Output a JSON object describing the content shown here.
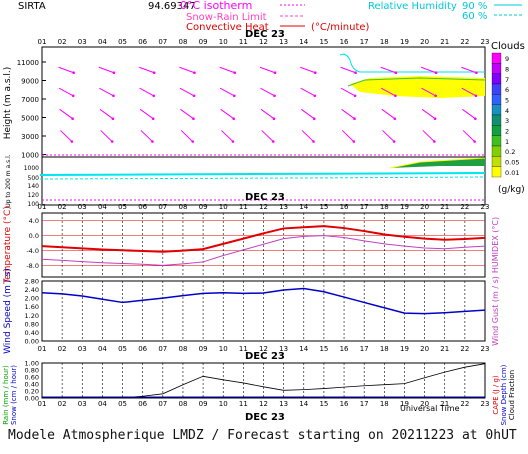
{
  "header": {
    "station": "SIRTA",
    "coords": "94.69347",
    "legend_iso": "0°C isotherm",
    "legend_snow": "Snow-Rain Limit",
    "legend_conv": "Convective Heat",
    "legend_conv_unit": "(°C/minute)",
    "legend_rh": "Relative Humidity",
    "rh_90": "90 %",
    "rh_60": "60 %"
  },
  "colors": {
    "wind_arrow": "#ff00ff",
    "rh": "#00e5ee",
    "temperature": "#e00000",
    "humidex": "#c040c0",
    "wind_speed": "#0000c8",
    "precip": "#000000",
    "iso": "#ff00ff"
  },
  "date_label": "DEC 23",
  "hours": [
    "01",
    "02",
    "03",
    "04",
    "05",
    "06",
    "07",
    "08",
    "09",
    "10",
    "11",
    "12",
    "13",
    "14",
    "15",
    "16",
    "17",
    "18",
    "19",
    "20",
    "21",
    "22",
    "23"
  ],
  "panels": {
    "height": {
      "ylabel": "Height (m a.s.l.)",
      "ticks": [
        "11000",
        "9000",
        "7000",
        "5000",
        "3000",
        "1000"
      ],
      "low_label": "Up to 200 m a.s.l.",
      "low_ticks": [
        "1000",
        "500",
        "140",
        "120",
        "100"
      ]
    },
    "clouds": {
      "title": "Clouds",
      "levels": [
        "9",
        "8",
        "7",
        "6",
        "5",
        "4",
        "3",
        "2",
        "1",
        "0.2",
        "0.05",
        "0.01"
      ],
      "unit": "(g/kg)",
      "colors": [
        "#ff00ff",
        "#c000ff",
        "#8000ff",
        "#4040ff",
        "#3060ff",
        "#1890c0",
        "#109070",
        "#10a040",
        "#40c020",
        "#80d000",
        "#c0e000",
        "#ffff00"
      ]
    },
    "temperature": {
      "ylabel": "Temperature (°C)",
      "ylabel_right": "HUMIDEX (°C)",
      "ticks": [
        "4.0",
        "0.0",
        "-4.0",
        "-8.0"
      ]
    },
    "wind": {
      "ylabel": "Wind Speed (m / s)",
      "ylabel_right": "Wind Gust (m / s)",
      "ticks": [
        "2.80",
        "2.40",
        "2.00",
        "1.60",
        "1.20",
        "0.80",
        "0.40",
        "0.00"
      ]
    },
    "precip": {
      "ylabel": "Rain (mm / hour)",
      "ylabel2": "Snow (cm / hour)",
      "ylabel_right": "CAPE (J / g)",
      "ylabel_right2": "Snow Depth (cm)",
      "ylabel_right3": "Cloud Fraction",
      "ticks": [
        "1.00",
        "0.80",
        "0.60",
        "0.40",
        "0.20",
        "0.00"
      ],
      "xlabel": "Universal Time"
    }
  },
  "chart_data": [
    {
      "type": "line",
      "name": "temperature-panel",
      "x": [
        1,
        2,
        3,
        4,
        5,
        6,
        7,
        8,
        9,
        10,
        11,
        12,
        13,
        14,
        15,
        16,
        17,
        18,
        19,
        20,
        21,
        22,
        23
      ],
      "ylim": [
        -11,
        6
      ],
      "series": [
        {
          "name": "Temperature",
          "values": [
            -2.8,
            -3.1,
            -3.4,
            -3.7,
            -3.9,
            -4.1,
            -4.3,
            -4.0,
            -3.6,
            -2.2,
            -0.8,
            0.6,
            1.9,
            2.2,
            2.5,
            2.0,
            1.2,
            0.3,
            -0.3,
            -0.8,
            -1.1,
            -0.9,
            -0.6
          ]
        },
        {
          "name": "Humidex",
          "values": [
            -6.3,
            -6.6,
            -6.9,
            -7.2,
            -7.4,
            -7.6,
            -7.9,
            -7.5,
            -7.0,
            -5.3,
            -3.8,
            -2.3,
            -0.8,
            -0.2,
            0.0,
            -0.5,
            -1.4,
            -2.2,
            -2.8,
            -3.3,
            -3.5,
            -3.1,
            -2.8
          ]
        }
      ]
    },
    {
      "type": "line",
      "name": "wind-panel",
      "x": [
        1,
        2,
        3,
        4,
        5,
        6,
        7,
        8,
        9,
        10,
        11,
        12,
        13,
        14,
        15,
        16,
        17,
        18,
        19,
        20,
        21,
        22,
        23
      ],
      "ylim": [
        0,
        2.8
      ],
      "series": [
        {
          "name": "Wind Speed",
          "values": [
            2.25,
            2.2,
            2.1,
            1.95,
            1.8,
            1.9,
            2.0,
            2.12,
            2.22,
            2.25,
            2.22,
            2.24,
            2.38,
            2.45,
            2.3,
            2.05,
            1.8,
            1.55,
            1.3,
            1.28,
            1.32,
            1.38,
            1.44
          ]
        }
      ]
    },
    {
      "type": "line",
      "name": "precip-panel",
      "x": [
        1,
        2,
        3,
        4,
        5,
        6,
        7,
        8,
        9,
        10,
        11,
        12,
        13,
        14,
        15,
        16,
        17,
        18,
        19,
        20,
        21,
        22,
        23
      ],
      "ylim": [
        0,
        1.0
      ],
      "series": [
        {
          "name": "Cloud Fraction",
          "values": [
            0.03,
            0.02,
            0.01,
            0.01,
            0.01,
            0.05,
            0.12,
            0.38,
            0.62,
            0.52,
            0.43,
            0.32,
            0.22,
            0.24,
            0.27,
            0.31,
            0.35,
            0.38,
            0.41,
            0.58,
            0.74,
            0.88,
            0.98
          ]
        }
      ]
    }
  ],
  "footer": "Modele Atmospherique LMDZ / Forecast starting on 20211223 at 0hUT"
}
